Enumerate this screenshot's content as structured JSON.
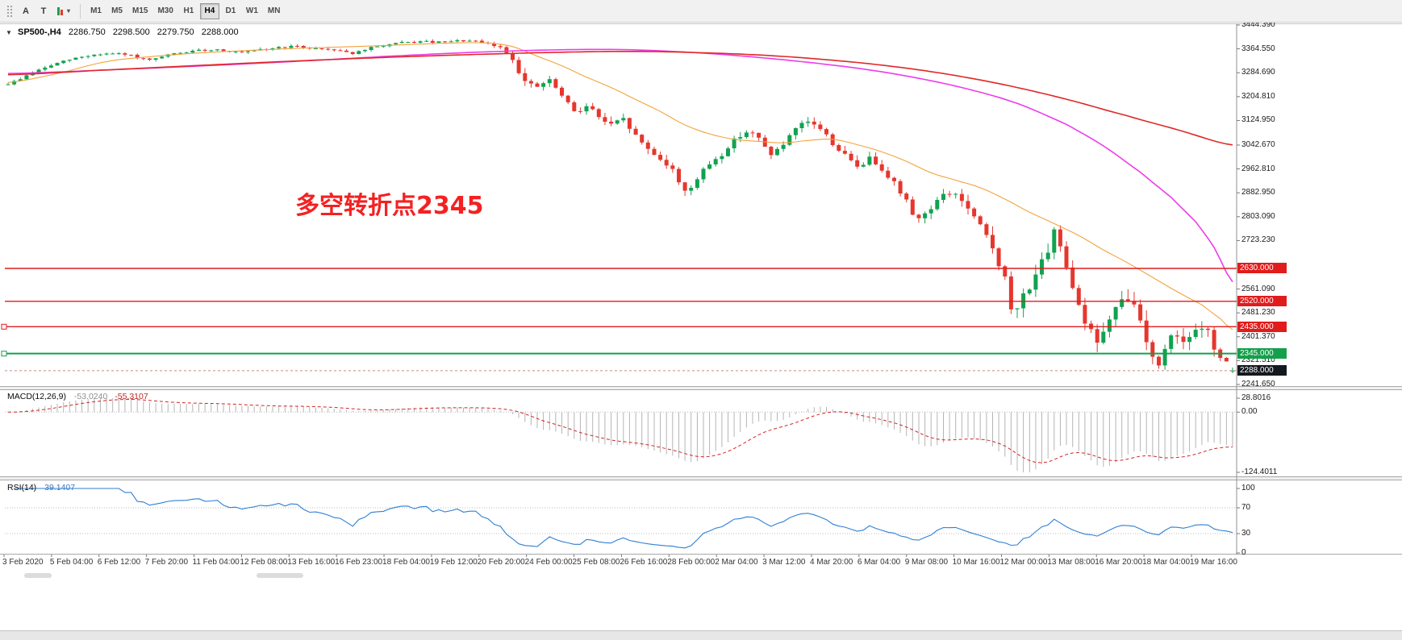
{
  "toolbar": {
    "buttons": [
      {
        "name": "annotation-tool",
        "label": "A"
      },
      {
        "name": "text-tool",
        "label": "T"
      }
    ],
    "caret": "▾",
    "timeframes": [
      "M1",
      "M5",
      "M15",
      "M30",
      "H1",
      "H4",
      "D1",
      "W1",
      "MN"
    ],
    "active_timeframe": "H4"
  },
  "chart_header": {
    "expander": "▼",
    "symbol": "SP500-,H4",
    "open": "2286.750",
    "high": "2298.500",
    "low": "2279.750",
    "close": "2288.000"
  },
  "annotation": {
    "text": "多空转折点2345",
    "color": "#f42121"
  },
  "indicators": {
    "macd": {
      "label": "MACD(12,26,9)",
      "main_value": "-53.0240",
      "signal_value": "-55.3107",
      "axis": [
        "28.8016",
        "0.00",
        "-124.4011"
      ]
    },
    "rsi": {
      "label": "RSI(14)",
      "value": "39.1407",
      "axis": [
        "100",
        "70",
        "30",
        "0"
      ]
    }
  },
  "chart_data": {
    "type": "candlestick",
    "symbol": "SP500-",
    "period": "H4",
    "bars": 200,
    "seed": 9,
    "y_axis": {
      "ticks": [
        "3444.390",
        "3364.550",
        "3284.690",
        "3204.810",
        "3124.950",
        "3042.670",
        "2962.810",
        "2882.950",
        "2803.090",
        "2723.230",
        "2561.090",
        "2481.230",
        "2401.370",
        "2321.510",
        "2241.650"
      ],
      "top_value": 3444.39,
      "bottom_value": 2241.65
    },
    "x_axis": {
      "labels": [
        "3 Feb 2020",
        "5 Feb 04:00",
        "6 Feb 12:00",
        "7 Feb 20:00",
        "11 Feb 04:00",
        "12 Feb 08:00",
        "13 Feb 16:00",
        "16 Feb 23:00",
        "18 Feb 04:00",
        "19 Feb 12:00",
        "20 Feb 20:00",
        "24 Feb 00:00",
        "25 Feb 08:00",
        "26 Feb 16:00",
        "28 Feb 00:00",
        "2 Mar 04:00",
        "3 Mar 12:00",
        "4 Mar 20:00",
        "6 Mar 04:00",
        "9 Mar 08:00",
        "10 Mar 16:00",
        "12 Mar 00:00",
        "13 Mar 08:00",
        "16 Mar 20:00",
        "18 Mar 04:00",
        "19 Mar 16:00"
      ]
    },
    "h_lines": [
      {
        "value": 2630.0,
        "label": "2630.000",
        "color": "#e01c1c",
        "width": 1.4,
        "left_marker": false
      },
      {
        "value": 2520.0,
        "label": "2520.000",
        "color": "#e01c1c",
        "width": 1.4,
        "left_marker": false
      },
      {
        "value": 2435.0,
        "label": "2435.000",
        "color": "#e01c1c",
        "width": 1.4,
        "left_marker": true
      },
      {
        "value": 2345.0,
        "label": "2345.000",
        "color": "#13a04a",
        "width": 2,
        "left_marker": true
      }
    ],
    "current_price": {
      "value": 2288.0,
      "label": "2288.000",
      "bg": "#14181f"
    },
    "last_candle": {
      "open": 2286.75,
      "high": 2298.5,
      "low": 2279.75,
      "close": 2288.0
    },
    "candle_colors": {
      "up": "#11a251",
      "down": "#e5372e"
    },
    "indicator_colors": {
      "macd_histogram": "#b5b5b5",
      "macd_signal": "#cf2626",
      "rsi_line": "#2f7fd4",
      "levels": "#bdbdbd"
    },
    "price_path": [
      [
        0,
        3248
      ],
      [
        4,
        3285
      ],
      [
        8,
        3316
      ],
      [
        12,
        3338
      ],
      [
        16,
        3348
      ],
      [
        20,
        3342
      ],
      [
        23,
        3326
      ],
      [
        26,
        3344
      ],
      [
        30,
        3356
      ],
      [
        34,
        3362
      ],
      [
        38,
        3352
      ],
      [
        42,
        3364
      ],
      [
        46,
        3372
      ],
      [
        50,
        3366
      ],
      [
        54,
        3360
      ],
      [
        56,
        3350
      ],
      [
        59,
        3368
      ],
      [
        63,
        3382
      ],
      [
        67,
        3388
      ],
      [
        71,
        3386
      ],
      [
        74,
        3392
      ],
      [
        77,
        3384
      ],
      [
        80,
        3368
      ],
      [
        82,
        3330
      ],
      [
        84,
        3255
      ],
      [
        86,
        3238
      ],
      [
        88,
        3256
      ],
      [
        90,
        3205
      ],
      [
        92,
        3158
      ],
      [
        94,
        3172
      ],
      [
        96,
        3138
      ],
      [
        98,
        3108
      ],
      [
        100,
        3126
      ],
      [
        102,
        3072
      ],
      [
        104,
        3030
      ],
      [
        106,
        2998
      ],
      [
        108,
        2956
      ],
      [
        110,
        2894
      ],
      [
        112,
        2928
      ],
      [
        114,
        2980
      ],
      [
        116,
        3012
      ],
      [
        118,
        3058
      ],
      [
        120,
        3088
      ],
      [
        122,
        3062
      ],
      [
        124,
        3016
      ],
      [
        126,
        3044
      ],
      [
        128,
        3092
      ],
      [
        130,
        3118
      ],
      [
        132,
        3098
      ],
      [
        134,
        3048
      ],
      [
        136,
        3008
      ],
      [
        138,
        2972
      ],
      [
        140,
        2996
      ],
      [
        142,
        2966
      ],
      [
        144,
        2916
      ],
      [
        146,
        2852
      ],
      [
        148,
        2798
      ],
      [
        150,
        2836
      ],
      [
        152,
        2872
      ],
      [
        154,
        2878
      ],
      [
        156,
        2826
      ],
      [
        158,
        2766
      ],
      [
        160,
        2702
      ],
      [
        162,
        2592
      ],
      [
        163,
        2480
      ],
      [
        165,
        2538
      ],
      [
        167,
        2615
      ],
      [
        169,
        2672
      ],
      [
        170,
        2748
      ],
      [
        172,
        2645
      ],
      [
        174,
        2512
      ],
      [
        176,
        2415
      ],
      [
        177,
        2390
      ],
      [
        179,
        2455
      ],
      [
        181,
        2512
      ],
      [
        182,
        2530
      ],
      [
        184,
        2455
      ],
      [
        186,
        2345
      ],
      [
        187,
        2292
      ],
      [
        188,
        2370
      ],
      [
        190,
        2415
      ],
      [
        192,
        2388
      ],
      [
        194,
        2432
      ],
      [
        196,
        2372
      ],
      [
        198,
        2305
      ],
      [
        199,
        2288
      ]
    ],
    "volatility": [
      [
        0,
        14
      ],
      [
        74,
        14
      ],
      [
        80,
        20
      ],
      [
        84,
        38
      ],
      [
        108,
        40
      ],
      [
        128,
        34
      ],
      [
        140,
        40
      ],
      [
        152,
        44
      ],
      [
        158,
        56
      ],
      [
        163,
        85
      ],
      [
        170,
        66
      ],
      [
        177,
        82
      ],
      [
        183,
        74
      ],
      [
        187,
        84
      ],
      [
        193,
        64
      ],
      [
        199,
        58
      ]
    ],
    "moving_averages": [
      {
        "name": "fast",
        "color": "#f2a33c",
        "width": 1.1,
        "anchors": [
          [
            0,
            3252
          ],
          [
            8,
            3282
          ],
          [
            16,
            3322
          ],
          [
            24,
            3340
          ],
          [
            32,
            3352
          ],
          [
            40,
            3360
          ],
          [
            48,
            3367
          ],
          [
            56,
            3372
          ],
          [
            64,
            3378
          ],
          [
            72,
            3384
          ],
          [
            78,
            3384
          ],
          [
            82,
            3372
          ],
          [
            86,
            3340
          ],
          [
            90,
            3308
          ],
          [
            94,
            3270
          ],
          [
            98,
            3235
          ],
          [
            102,
            3195
          ],
          [
            106,
            3155
          ],
          [
            110,
            3110
          ],
          [
            114,
            3080
          ],
          [
            118,
            3062
          ],
          [
            122,
            3055
          ],
          [
            126,
            3050
          ],
          [
            130,
            3058
          ],
          [
            134,
            3062
          ],
          [
            138,
            3044
          ],
          [
            142,
            3020
          ],
          [
            146,
            2988
          ],
          [
            150,
            2950
          ],
          [
            154,
            2925
          ],
          [
            158,
            2900
          ],
          [
            162,
            2862
          ],
          [
            166,
            2818
          ],
          [
            170,
            2780
          ],
          [
            174,
            2740
          ],
          [
            178,
            2692
          ],
          [
            182,
            2648
          ],
          [
            186,
            2600
          ],
          [
            190,
            2552
          ],
          [
            194,
            2508
          ],
          [
            197,
            2462
          ],
          [
            199,
            2425
          ]
        ]
      },
      {
        "name": "mid",
        "color": "#ee3cea",
        "width": 1.6,
        "anchors": [
          [
            0,
            3282
          ],
          [
            16,
            3294
          ],
          [
            32,
            3308
          ],
          [
            48,
            3324
          ],
          [
            64,
            3342
          ],
          [
            80,
            3356
          ],
          [
            92,
            3362
          ],
          [
            100,
            3362
          ],
          [
            108,
            3356
          ],
          [
            116,
            3346
          ],
          [
            124,
            3332
          ],
          [
            132,
            3315
          ],
          [
            140,
            3294
          ],
          [
            148,
            3266
          ],
          [
            156,
            3230
          ],
          [
            164,
            3182
          ],
          [
            172,
            3112
          ],
          [
            178,
            3040
          ],
          [
            184,
            2952
          ],
          [
            189,
            2868
          ],
          [
            193,
            2786
          ],
          [
            196,
            2700
          ],
          [
            199,
            2585
          ]
        ]
      },
      {
        "name": "slow",
        "color": "#e02828",
        "width": 1.6,
        "anchors": [
          [
            0,
            3278
          ],
          [
            16,
            3294
          ],
          [
            32,
            3310
          ],
          [
            48,
            3325
          ],
          [
            64,
            3338
          ],
          [
            80,
            3348
          ],
          [
            92,
            3354
          ],
          [
            102,
            3356
          ],
          [
            112,
            3352
          ],
          [
            122,
            3344
          ],
          [
            132,
            3330
          ],
          [
            142,
            3310
          ],
          [
            152,
            3282
          ],
          [
            162,
            3244
          ],
          [
            172,
            3196
          ],
          [
            182,
            3140
          ],
          [
            190,
            3094
          ],
          [
            199,
            3043
          ]
        ]
      }
    ],
    "macd_scale": {
      "top_value": 28.8016,
      "bottom_value": -124.4011
    },
    "rsi_levels": [
      70,
      30
    ]
  }
}
